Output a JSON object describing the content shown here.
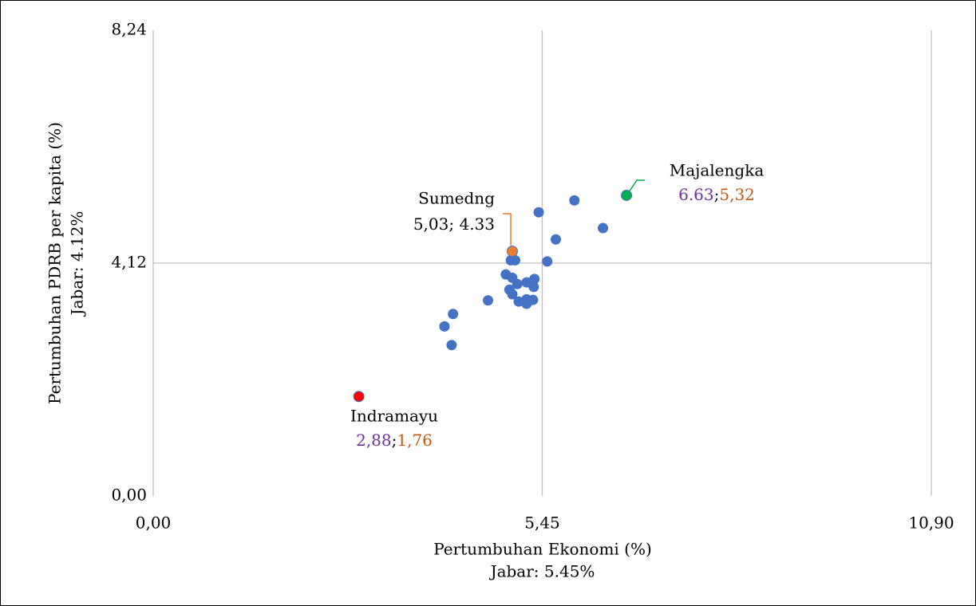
{
  "chart_data": {
    "type": "scatter",
    "xlabel": [
      "Pertumbuhan Ekonomi (%)",
      "Jabar: 5.45%"
    ],
    "ylabel": [
      "Pertumbuhan PDRB per kapita (%)",
      "Jabar: 4.12%"
    ],
    "xlim": [
      0,
      10.9
    ],
    "ylim": [
      0,
      8.24
    ],
    "xticks": [
      {
        "value": 0,
        "label": "0,00"
      },
      {
        "value": 5.45,
        "label": "5,45"
      },
      {
        "value": 10.9,
        "label": "10,90"
      }
    ],
    "yticks": [
      {
        "value": 0,
        "label": "0,00"
      },
      {
        "value": 4.12,
        "label": "4,12"
      },
      {
        "value": 8.24,
        "label": "8,24"
      }
    ],
    "grid": true,
    "series": [
      {
        "color": "#4472c4",
        "x": [
          5.4,
          5.9,
          5.64,
          6.3,
          5.52,
          5.01,
          5.07,
          4.94,
          5.03,
          5.1,
          4.99,
          5.03,
          5.23,
          5.34,
          5.33,
          5.12,
          5.23,
          5.23,
          5.32,
          4.69,
          4.2,
          4.08,
          4.18
        ],
        "values": [
          5.02,
          5.23,
          4.54,
          4.74,
          4.15,
          4.17,
          4.17,
          3.92,
          3.86,
          3.75,
          3.65,
          3.57,
          3.78,
          3.84,
          3.7,
          3.44,
          3.48,
          3.4,
          3.47,
          3.46,
          3.22,
          3.0,
          2.67
        ]
      },
      {
        "label": "Sumedng",
        "color": "#ed7d31",
        "x": [
          5.03
        ],
        "values": [
          4.33
        ],
        "x_labels": [
          "5,03"
        ],
        "value_labels": [
          "4.33"
        ],
        "separator": "; ",
        "label_colors": [
          "#000000",
          "#000000"
        ]
      },
      {
        "label": "Majalengka",
        "color": "#00b050",
        "x": [
          6.63
        ],
        "values": [
          5.32
        ],
        "x_labels": [
          "6.63"
        ],
        "value_labels": [
          "5,32"
        ],
        "separator": ";",
        "label_colors": [
          "#7030a0",
          "#c55a11"
        ]
      },
      {
        "label": "Indramayu",
        "color": "#ff0000",
        "x": [
          2.88
        ],
        "values": [
          1.76
        ],
        "x_labels": [
          "2,88"
        ],
        "value_labels": [
          "1,76"
        ],
        "separator": ";",
        "label_colors": [
          "#7030a0",
          "#c55a11"
        ]
      }
    ]
  }
}
